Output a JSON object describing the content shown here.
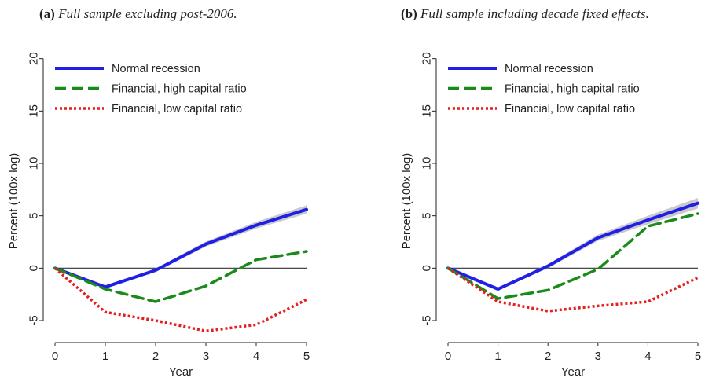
{
  "panels": [
    {
      "label": "(a)",
      "title": "Full sample excluding post-2006."
    },
    {
      "label": "(b)",
      "title": "Full sample including decade fixed effects."
    }
  ],
  "colors": {
    "normal": "#1f1fe6",
    "high": "#1a8a1a",
    "low": "#e61f1f",
    "band": "#bdbdbd",
    "zero": "#333333"
  },
  "chart_data": [
    {
      "type": "line",
      "title": "(a) Full sample excluding post-2006.",
      "xlabel": "Year",
      "ylabel": "Percent (100x log)",
      "x": [
        0,
        1,
        2,
        3,
        4,
        5
      ],
      "xticks": [
        "0",
        "1",
        "2",
        "3",
        "4",
        "5"
      ],
      "yticks": [
        "-5",
        "0",
        "5",
        "10",
        "15",
        "20"
      ],
      "xlim": [
        0,
        5
      ],
      "ylim": [
        -6.8,
        20.5
      ],
      "legend": "top-left",
      "series": [
        {
          "name": "Normal recession",
          "style": "solid",
          "values": [
            0,
            -1.8,
            -0.2,
            2.3,
            4.1,
            5.6
          ],
          "band": 0.4
        },
        {
          "name": "Financial, high capital ratio",
          "style": "dashed",
          "values": [
            0,
            -2.0,
            -3.2,
            -1.7,
            0.8,
            1.6
          ]
        },
        {
          "name": "Financial, low capital ratio",
          "style": "dotted",
          "values": [
            0,
            -4.2,
            -5.0,
            -6.0,
            -5.4,
            -3.0
          ]
        }
      ]
    },
    {
      "type": "line",
      "title": "(b) Full sample including decade fixed effects.",
      "xlabel": "Year",
      "ylabel": "Percent (100x log)",
      "x": [
        0,
        1,
        2,
        3,
        4,
        5
      ],
      "xticks": [
        "0",
        "1",
        "2",
        "3",
        "4",
        "5"
      ],
      "yticks": [
        "-5",
        "0",
        "5",
        "10",
        "15",
        "20"
      ],
      "xlim": [
        0,
        5
      ],
      "ylim": [
        -6.8,
        20.5
      ],
      "legend": "top-left",
      "series": [
        {
          "name": "Normal recession",
          "style": "solid",
          "values": [
            0,
            -2.0,
            0.2,
            2.9,
            4.6,
            6.2
          ],
          "band": 0.5
        },
        {
          "name": "Financial, high capital ratio",
          "style": "dashed",
          "values": [
            0,
            -2.9,
            -2.1,
            -0.1,
            4.0,
            5.2
          ]
        },
        {
          "name": "Financial, low capital ratio",
          "style": "dotted",
          "values": [
            0,
            -3.2,
            -4.1,
            -3.6,
            -3.2,
            -0.9
          ]
        }
      ]
    }
  ]
}
